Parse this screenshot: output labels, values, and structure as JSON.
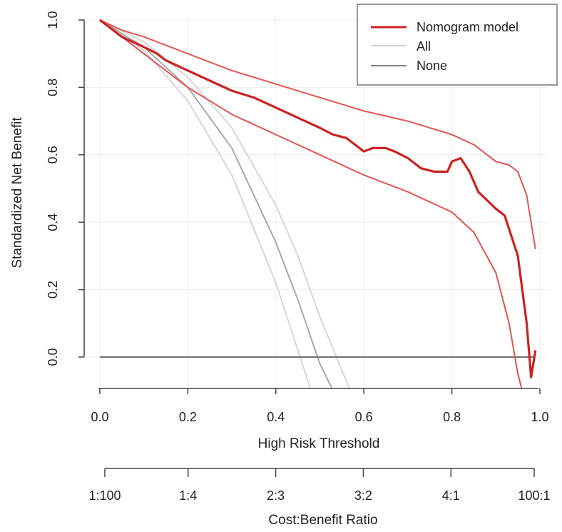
{
  "chart_data": {
    "type": "line",
    "title": "",
    "xlabel": "High Risk Threshold",
    "ylabel": "Standardized Net Benefit",
    "xlim": [
      0,
      1
    ],
    "ylim": [
      -0.1,
      1.0
    ],
    "x_ticks": [
      "0.0",
      "0.2",
      "0.4",
      "0.6",
      "0.8",
      "1.0"
    ],
    "x_tick_values": [
      0,
      0.2,
      0.4,
      0.6,
      0.8,
      1.0
    ],
    "y_ticks": [
      "0.0",
      "0.2",
      "0.4",
      "0.6",
      "0.8",
      "1.0"
    ],
    "y_tick_values": [
      0,
      0.2,
      0.4,
      0.6,
      0.8,
      1.0
    ],
    "grid": true,
    "legend_position": "top-right",
    "legend": [
      {
        "label": "Nomogram model",
        "color": "#cc2222"
      },
      {
        "label": "All",
        "color": "#d0d0d0"
      },
      {
        "label": "None",
        "color": "#808080"
      }
    ],
    "secondary_axis": {
      "label": "Cost:Benefit Ratio",
      "ticks": [
        "1:100",
        "1:4",
        "2:3",
        "3:2",
        "4:1",
        "100:1"
      ],
      "tick_values": [
        0.01,
        0.2,
        0.4,
        0.6,
        0.8,
        0.99
      ]
    },
    "series": [
      {
        "name": "Nomogram model",
        "role": "main",
        "color": "#cc2222",
        "x": [
          0,
          0.02,
          0.05,
          0.1,
          0.13,
          0.15,
          0.2,
          0.25,
          0.3,
          0.35,
          0.4,
          0.45,
          0.5,
          0.53,
          0.56,
          0.58,
          0.6,
          0.62,
          0.65,
          0.67,
          0.7,
          0.73,
          0.76,
          0.79,
          0.8,
          0.82,
          0.84,
          0.86,
          0.9,
          0.92,
          0.95,
          0.97,
          0.98,
          0.99
        ],
        "y": [
          1.0,
          0.98,
          0.95,
          0.92,
          0.9,
          0.88,
          0.85,
          0.82,
          0.79,
          0.77,
          0.74,
          0.71,
          0.68,
          0.66,
          0.65,
          0.63,
          0.61,
          0.62,
          0.62,
          0.61,
          0.59,
          0.56,
          0.55,
          0.55,
          0.58,
          0.59,
          0.55,
          0.49,
          0.44,
          0.42,
          0.3,
          0.1,
          -0.06,
          0.02
        ]
      },
      {
        "name": "Nomogram model upper CI",
        "role": "ci",
        "color": "#e05555",
        "x": [
          0,
          0.05,
          0.1,
          0.2,
          0.3,
          0.4,
          0.5,
          0.6,
          0.7,
          0.8,
          0.85,
          0.9,
          0.93,
          0.95,
          0.97,
          0.99
        ],
        "y": [
          1.0,
          0.97,
          0.95,
          0.9,
          0.85,
          0.81,
          0.77,
          0.73,
          0.7,
          0.66,
          0.63,
          0.58,
          0.57,
          0.55,
          0.48,
          0.32
        ]
      },
      {
        "name": "Nomogram model lower CI",
        "role": "ci",
        "color": "#e05555",
        "x": [
          0,
          0.05,
          0.1,
          0.2,
          0.3,
          0.4,
          0.5,
          0.6,
          0.7,
          0.8,
          0.85,
          0.9,
          0.93,
          0.95,
          0.96
        ],
        "y": [
          1.0,
          0.95,
          0.9,
          0.8,
          0.72,
          0.66,
          0.6,
          0.54,
          0.49,
          0.43,
          0.37,
          0.25,
          0.1,
          -0.05,
          -0.1
        ]
      },
      {
        "name": "All",
        "role": "all",
        "color": "#d6d6d6",
        "x": [
          0,
          0.1,
          0.2,
          0.3,
          0.4,
          0.45,
          0.5,
          0.55,
          0.57
        ],
        "y": [
          1.0,
          0.935,
          0.83,
          0.68,
          0.45,
          0.3,
          0.12,
          -0.04,
          -0.1
        ]
      },
      {
        "name": "All lower",
        "role": "all",
        "color": "#d6d6d6",
        "x": [
          0,
          0.1,
          0.2,
          0.3,
          0.4,
          0.45,
          0.48
        ],
        "y": [
          1.0,
          0.91,
          0.76,
          0.54,
          0.22,
          0.02,
          -0.1
        ]
      },
      {
        "name": "All mid",
        "role": "all-mid",
        "color": "#a8a8a8",
        "x": [
          0,
          0.1,
          0.2,
          0.3,
          0.4,
          0.45,
          0.5,
          0.53
        ],
        "y": [
          1.0,
          0.92,
          0.8,
          0.62,
          0.34,
          0.17,
          -0.02,
          -0.1
        ]
      },
      {
        "name": "None",
        "role": "none",
        "color": "#707070",
        "x": [
          0,
          0.99
        ],
        "y": [
          0,
          0
        ]
      }
    ]
  }
}
